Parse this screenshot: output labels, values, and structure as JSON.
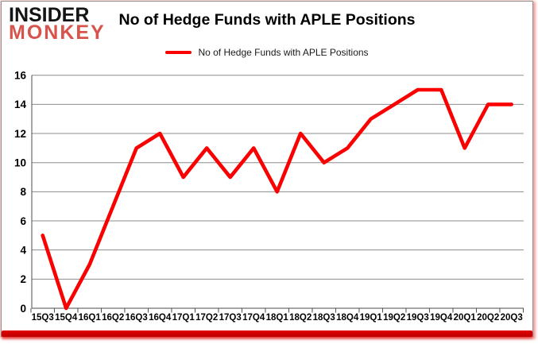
{
  "logo": {
    "line1": "INSIDER",
    "line2": "MONKEY"
  },
  "header": {
    "title": "No of Hedge Funds with APLE Positions"
  },
  "legend": {
    "label": "No of Hedge Funds with APLE Positions"
  },
  "chart_data": {
    "type": "line",
    "title": "No of Hedge Funds with APLE Positions",
    "categories": [
      "15Q3",
      "15Q4",
      "16Q1",
      "16Q2",
      "16Q3",
      "16Q4",
      "17Q1",
      "17Q2",
      "17Q3",
      "17Q4",
      "18Q1",
      "18Q2",
      "18Q3",
      "18Q4",
      "19Q1",
      "19Q2",
      "19Q3",
      "19Q4",
      "20Q1",
      "20Q2",
      "20Q3"
    ],
    "series": [
      {
        "name": "No of Hedge Funds with APLE Positions",
        "color": "#fb0000",
        "values": [
          5,
          0,
          3,
          7,
          11,
          12,
          9,
          11,
          9,
          11,
          8,
          12,
          10,
          11,
          13,
          14,
          15,
          15,
          11,
          14,
          14
        ]
      }
    ],
    "xlabel": "",
    "ylabel": "",
    "ylim": [
      0,
      16
    ],
    "ytick_step": 2,
    "grid": "horizontal",
    "legend_position": "top-center"
  },
  "colors": {
    "logo_black": "#141414",
    "logo_red": "#d8534b",
    "line_red": "#fb0000",
    "gridline": "#8c8c8c",
    "axis": "#4d4d4d",
    "frame_border": "#8f8f8f",
    "bottom_bar": "#e10000",
    "outer_glow": "#f2b0ac"
  }
}
